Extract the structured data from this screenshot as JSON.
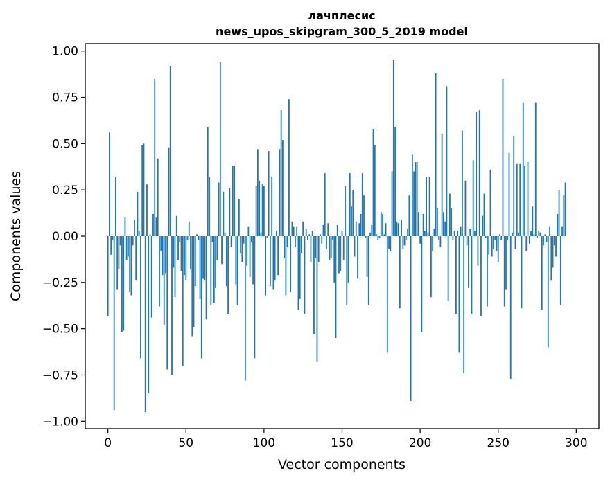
{
  "chart_data": {
    "type": "bar",
    "title_lines": [
      "лачплесис",
      "news_upos_skipgram_300_5_2019 model"
    ],
    "xlabel": "Vector components",
    "ylabel": "Components values",
    "xlim": [
      -14.5,
      314.5
    ],
    "ylim": [
      -1.04,
      1.04
    ],
    "xticks": [
      0,
      50,
      100,
      150,
      200,
      250,
      300
    ],
    "xtick_labels": [
      "0",
      "50",
      "100",
      "150",
      "200",
      "250",
      "300"
    ],
    "yticks": [
      1.0,
      0.75,
      0.5,
      0.25,
      0.0,
      -0.25,
      -0.5,
      -0.75,
      -1.0
    ],
    "ytick_labels": [
      "1.00",
      "0.75",
      "0.50",
      "0.25",
      "0.00",
      "−0.25",
      "−0.50",
      "−0.75",
      "−1.00"
    ],
    "bar_color": "#1f77b4",
    "values": [
      -0.43,
      0.56,
      -0.1,
      -0.02,
      -0.94,
      0.32,
      -0.29,
      -0.18,
      -0.05,
      -0.52,
      -0.51,
      0.1,
      -0.13,
      -0.11,
      -0.3,
      -0.32,
      -0.05,
      0.09,
      -0.24,
      0.24,
      0.03,
      -0.66,
      0.49,
      0.5,
      -0.95,
      0.28,
      -0.85,
      0.01,
      -0.44,
      0.12,
      0.85,
      0.1,
      0.42,
      -0.38,
      -0.08,
      -0.21,
      -0.48,
      -0.2,
      -0.72,
      0.48,
      0.92,
      -0.75,
      -0.17,
      -0.33,
      0.11,
      -0.13,
      -0.03,
      -0.19,
      -0.7,
      -0.21,
      -0.24,
      -0.02,
      0.08,
      -0.18,
      -0.54,
      -0.49,
      -0.27,
      0.01,
      -0.02,
      -0.34,
      -0.66,
      -0.23,
      -0.24,
      -0.45,
      0.59,
      0.32,
      -0.37,
      -0.03,
      -0.36,
      -0.28,
      -0.13,
      0.29,
      0.94,
      -0.15,
      0.24,
      0.02,
      -0.27,
      -0.42,
      0.26,
      -0.06,
      0.38,
      0.38,
      -0.26,
      -0.37,
      0.2,
      -0.09,
      -0.14,
      -0.04,
      -0.78,
      -0.16,
      0.05,
      -0.22,
      -0.03,
      -0.26,
      -0.66,
      0.27,
      0.47,
      0.3,
      0.02,
      0.28,
      0.27,
      -0.32,
      -0.01,
      0.46,
      -0.27,
      0.32,
      -0.29,
      -0.24,
      0.03,
      -0.21,
      0.47,
      0.68,
      0.52,
      -0.12,
      -0.32,
      -0.06,
      0.74,
      -0.3,
      0.08,
      0.05,
      -0.06,
      0.05,
      -0.4,
      -0.34,
      -0.09,
      0.08,
      -0.42,
      0.04,
      -0.02,
      0.01,
      -0.14,
      0.03,
      -0.53,
      -0.12,
      -0.68,
      -0.14,
      0.01,
      -0.04,
      0.06,
      0.34,
      -0.07,
      0.07,
      -0.13,
      -0.12,
      -0.02,
      -0.25,
      -0.55,
      0.06,
      -0.2,
      -0.19,
      0.03,
      -0.13,
      0.27,
      -0.37,
      -0.25,
      0.34,
      0.16,
      0.25,
      -0.11,
      0.08,
      -0.23,
      0.07,
      0.12,
      0.34,
      0.22,
      -0.01,
      -0.22,
      -0.37,
      0.02,
      0.06,
      0.58,
      0.49,
      0.01,
      -0.02,
      -0.01,
      0.13,
      0.12,
      0.01,
      0.07,
      -0.63,
      -0.07,
      -0.08,
      0.35,
      0.95,
      0.59,
      0.08,
      0.07,
      -0.39,
      0.09,
      -0.07,
      -0.05,
      -0.02,
      0.04,
      0.22,
      -0.89,
      0.44,
      0.35,
      0.4,
      0.4,
      0.13,
      -0.04,
      -0.52,
      0.12,
      0.03,
      0.32,
      0.02,
      0.32,
      -0.33,
      -0.08,
      0.04,
      0.88,
      0.15,
      -0.02,
      -0.06,
      0.55,
      0.13,
      0.08,
      0.81,
      -0.35,
      0.23,
      0.15,
      -0.02,
      0.03,
      -0.42,
      0.03,
      -0.63,
      0.05,
      0.57,
      -0.74,
      0.3,
      -0.05,
      -0.28,
      0.04,
      -0.42,
      0.41,
      0.03,
      0.67,
      -0.16,
      0.68,
      -0.43,
      0.11,
      0.23,
      -0.01,
      -0.38,
      -0.1,
      0.36,
      -0.11,
      -0.07,
      -0.02,
      -0.08,
      -0.14,
      0.01,
      -0.02,
      0.85,
      -0.38,
      -0.29,
      -0.02,
      0.45,
      -0.77,
      0.02,
      0.54,
      -0.07,
      0.39,
      0.02,
      0.39,
      -0.39,
      0.72,
      0.38,
      -0.08,
      0.4,
      -0.04,
      0.03,
      0.16,
      0.01,
      0.72,
      -0.01,
      0.03,
      0.02,
      -0.4,
      -0.05,
      0.01,
      -0.03,
      -0.6,
      0.05,
      -0.24,
      -0.17,
      -0.05,
      -0.11,
      0.12,
      0.25,
      -0.37,
      0.05,
      0.22,
      0.29
    ]
  }
}
